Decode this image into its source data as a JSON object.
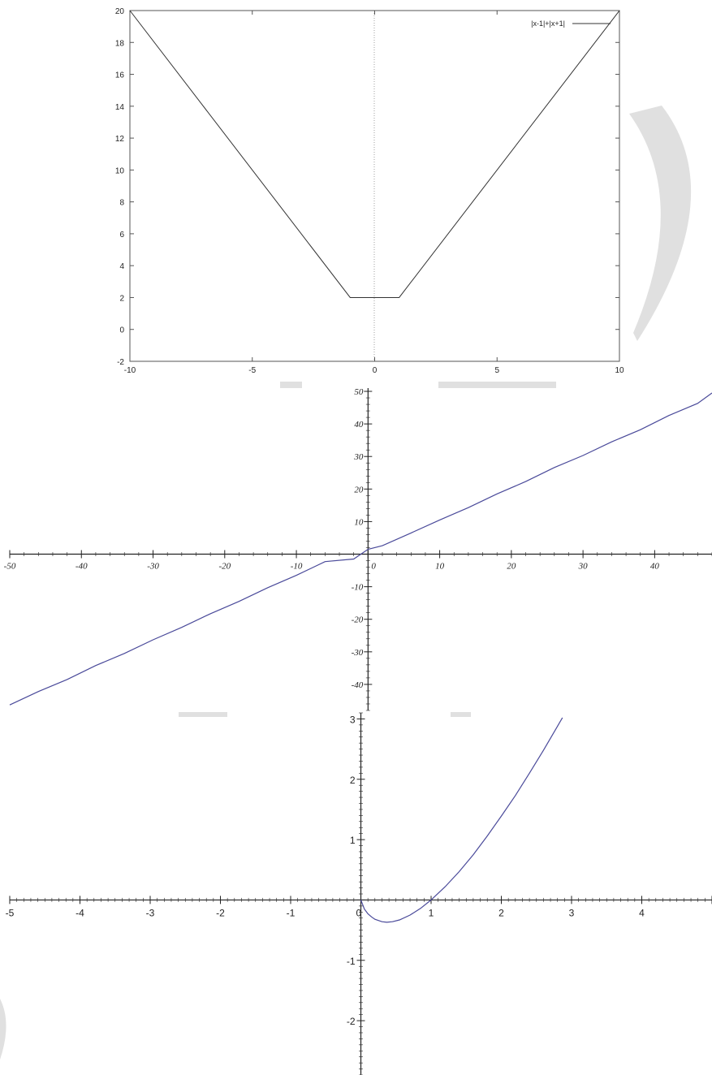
{
  "chart_data": [
    {
      "type": "line",
      "title": "",
      "xlabel": "",
      "ylabel": "",
      "xlim": [
        -10,
        10
      ],
      "ylim": [
        -2,
        20
      ],
      "x_ticks": [
        -10,
        -5,
        0,
        5,
        10
      ],
      "y_ticks": [
        -2,
        0,
        2,
        4,
        6,
        8,
        10,
        12,
        14,
        16,
        18,
        20
      ],
      "x_tick_labels": [
        "-10",
        "-5",
        "0",
        "5",
        "10"
      ],
      "y_tick_labels": [
        "-2",
        "0",
        "2",
        "4",
        "6",
        "8",
        "10",
        "12",
        "14",
        "16",
        "18",
        "20"
      ],
      "legend_position": "top-right",
      "series": [
        {
          "name": "|x-1|+|x+1|",
          "x": [
            -10,
            -1,
            1,
            10
          ],
          "y": [
            20,
            2,
            2,
            20
          ],
          "color": "#333333"
        }
      ],
      "grid": false
    },
    {
      "type": "line",
      "title": "",
      "xlabel": "",
      "ylabel": "",
      "xlim": [
        -50,
        48
      ],
      "ylim": [
        -48,
        51
      ],
      "x_ticks": [
        -50,
        -40,
        -30,
        -20,
        -10,
        0,
        10,
        20,
        30,
        40
      ],
      "y_ticks": [
        -40,
        -30,
        -20,
        -10,
        10,
        20,
        30,
        40,
        50
      ],
      "x_tick_labels": [
        "-50",
        "-40",
        "-30",
        "-20",
        "-10",
        "0",
        "10",
        "20",
        "30",
        "40"
      ],
      "y_tick_labels": [
        "-40",
        "-30",
        "-20",
        "-10",
        "10",
        "20",
        "30",
        "40",
        "50"
      ],
      "series": [
        {
          "x": [
            -50,
            -46,
            -42,
            -38,
            -34,
            -30,
            -26,
            -22,
            -18,
            -14,
            -10,
            -6,
            -2,
            0,
            2,
            6,
            10,
            14,
            18,
            22,
            26,
            30,
            34,
            38,
            42,
            46,
            48
          ],
          "y": [
            -46.3,
            -42.2,
            -38.5,
            -34.2,
            -30.5,
            -26.3,
            -22.5,
            -18.3,
            -14.5,
            -10.3,
            -6.5,
            -2.3,
            -1.5,
            1.5,
            2.6,
            6.5,
            10.5,
            14.3,
            18.5,
            22.3,
            26.6,
            30.3,
            34.5,
            38.2,
            42.6,
            46.3,
            49.5
          ],
          "color": "#4a4a9a"
        }
      ],
      "grid": false
    },
    {
      "type": "line",
      "title": "",
      "xlabel": "",
      "ylabel": "",
      "xlim": [
        -5,
        5
      ],
      "ylim": [
        -2.9,
        3.1
      ],
      "x_ticks": [
        -5,
        -4,
        -3,
        -2,
        -1,
        0,
        1,
        2,
        3,
        4
      ],
      "y_ticks": [
        -2,
        -1,
        1,
        2,
        3
      ],
      "x_tick_labels": [
        "-5",
        "-4",
        "-3",
        "-2",
        "-1",
        "0",
        "1",
        "2",
        "3",
        "4"
      ],
      "y_tick_labels": [
        "-2",
        "-1",
        "1",
        "2",
        "3"
      ],
      "series": [
        {
          "x": [
            0,
            0.05,
            0.1,
            0.15,
            0.2,
            0.3,
            0.37,
            0.45,
            0.55,
            0.7,
            0.85,
            1.0,
            1.2,
            1.4,
            1.6,
            1.8,
            2.0,
            2.2,
            2.4,
            2.6,
            2.8,
            2.87
          ],
          "y": [
            0,
            -0.15,
            -0.23,
            -0.28,
            -0.32,
            -0.36,
            -0.37,
            -0.36,
            -0.33,
            -0.25,
            -0.14,
            0.0,
            0.22,
            0.47,
            0.75,
            1.06,
            1.39,
            1.73,
            2.1,
            2.48,
            2.88,
            3.02
          ],
          "color": "#4a4a9a"
        }
      ],
      "grid": false
    }
  ]
}
